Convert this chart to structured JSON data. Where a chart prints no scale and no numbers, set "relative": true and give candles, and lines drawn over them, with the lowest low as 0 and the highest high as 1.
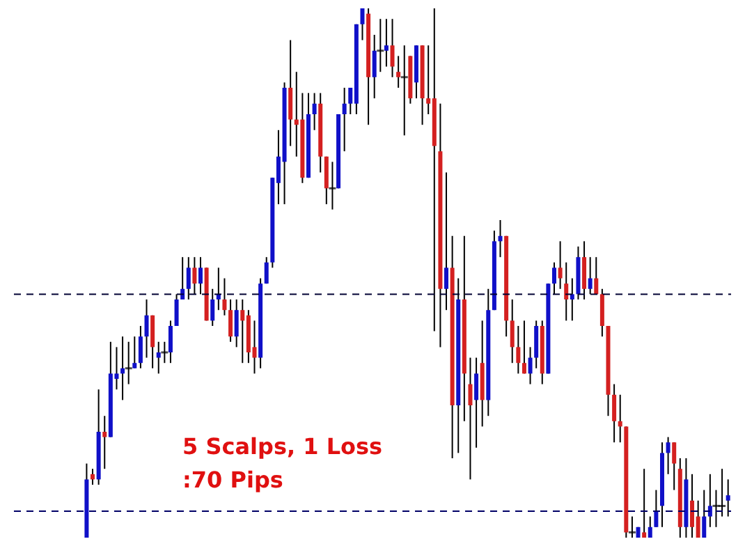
{
  "chart_data": {
    "type": "candlestick",
    "relative": true,
    "categories": [
      null,
      null,
      null,
      null,
      null,
      null,
      null,
      null,
      null,
      null,
      null,
      null,
      null,
      null,
      null,
      null,
      null,
      null,
      null,
      null,
      null,
      null,
      null,
      null,
      null,
      null,
      null,
      null,
      null,
      null,
      null,
      null,
      null,
      null,
      null,
      null,
      null,
      null,
      null,
      null,
      null,
      null,
      null,
      null,
      null,
      null,
      null,
      null,
      null,
      null,
      null,
      null,
      null,
      null,
      null,
      null,
      null,
      null,
      null,
      null,
      null,
      null,
      null,
      null,
      null,
      null,
      null,
      null,
      null,
      null,
      null,
      null,
      null,
      null,
      null,
      null,
      null,
      null,
      null,
      null,
      null,
      null,
      null,
      null,
      null,
      null,
      null,
      null,
      null,
      null,
      null,
      null,
      null,
      null,
      null,
      null,
      null,
      null,
      null,
      null,
      null,
      null,
      null,
      null,
      null,
      null,
      null,
      null
    ],
    "ohlc": [
      [
        0,
        0.14,
        0,
        0.11
      ],
      [
        0.12,
        0.13,
        0.1,
        0.11
      ],
      [
        0.11,
        0.28,
        0.1,
        0.2
      ],
      [
        0.2,
        0.23,
        0.13,
        0.19
      ],
      [
        0.19,
        0.37,
        0.19,
        0.31
      ],
      [
        0.3,
        0.36,
        0.28,
        0.31
      ],
      [
        0.31,
        0.38,
        0.26,
        0.32
      ],
      [
        0.32,
        0.37,
        0.29,
        0.32
      ],
      [
        0.32,
        0.38,
        0.32,
        0.33
      ],
      [
        0.33,
        0.4,
        0.32,
        0.38
      ],
      [
        0.38,
        0.45,
        0.34,
        0.42
      ],
      [
        0.42,
        0.42,
        0.32,
        0.36
      ],
      [
        0.34,
        0.37,
        0.31,
        0.35
      ],
      [
        0.35,
        0.37,
        0.33,
        0.35
      ],
      [
        0.35,
        0.41,
        0.33,
        0.4
      ],
      [
        0.4,
        0.46,
        0.4,
        0.45
      ],
      [
        0.45,
        0.53,
        0.45,
        0.47
      ],
      [
        0.47,
        0.53,
        0.45,
        0.51
      ],
      [
        0.51,
        0.53,
        0.46,
        0.48
      ],
      [
        0.48,
        0.53,
        0.46,
        0.51
      ],
      [
        0.51,
        0.51,
        0.41,
        0.41
      ],
      [
        0.41,
        0.47,
        0.4,
        0.45
      ],
      [
        0.45,
        0.51,
        0.43,
        0.46
      ],
      [
        0.45,
        0.49,
        0.42,
        0.43
      ],
      [
        0.43,
        0.45,
        0.37,
        0.38
      ],
      [
        0.38,
        0.45,
        0.36,
        0.43
      ],
      [
        0.43,
        0.45,
        0.33,
        0.41
      ],
      [
        0.42,
        0.43,
        0.33,
        0.35
      ],
      [
        0.36,
        0.41,
        0.31,
        0.34
      ],
      [
        0.34,
        0.49,
        0.32,
        0.48
      ],
      [
        0.48,
        0.53,
        0.48,
        0.52
      ],
      [
        0.52,
        0.68,
        0.51,
        0.68
      ],
      [
        0.67,
        0.77,
        0.63,
        0.72
      ],
      [
        0.71,
        0.86,
        0.63,
        0.85
      ],
      [
        0.85,
        0.94,
        0.74,
        0.79
      ],
      [
        0.79,
        0.88,
        0.72,
        0.78
      ],
      [
        0.79,
        0.84,
        0.67,
        0.68
      ],
      [
        0.68,
        0.84,
        0.68,
        0.8
      ],
      [
        0.8,
        0.84,
        0.77,
        0.82
      ],
      [
        0.82,
        0.84,
        0.69,
        0.72
      ],
      [
        0.72,
        0.72,
        0.63,
        0.66
      ],
      [
        0.66,
        0.71,
        0.62,
        0.66
      ],
      [
        0.66,
        0.8,
        0.66,
        0.8
      ],
      [
        0.8,
        0.85,
        0.73,
        0.82
      ],
      [
        0.82,
        0.85,
        0.8,
        0.85
      ],
      [
        0.82,
        0.97,
        0.8,
        0.97
      ],
      [
        0.97,
        1,
        0.94,
        1
      ],
      [
        0.99,
        1,
        0.78,
        0.87
      ],
      [
        0.87,
        0.95,
        0.83,
        0.92
      ],
      [
        0.92,
        0.98,
        0.88,
        0.92
      ],
      [
        0.92,
        0.98,
        0.89,
        0.93
      ],
      [
        0.93,
        0.98,
        0.87,
        0.89
      ],
      [
        0.88,
        0.91,
        0.85,
        0.87
      ],
      [
        0.87,
        0.93,
        0.76,
        0.87
      ],
      [
        0.91,
        0.91,
        0.82,
        0.83
      ],
      [
        0.86,
        0.93,
        0.83,
        0.93
      ],
      [
        0.93,
        0.93,
        0.78,
        0.83
      ],
      [
        0.83,
        0.93,
        0.8,
        0.82
      ],
      [
        0.83,
        1,
        0.39,
        0.74
      ],
      [
        0.73,
        0.82,
        0.36,
        0.47
      ],
      [
        0.47,
        0.69,
        0.43,
        0.51
      ],
      [
        0.51,
        0.57,
        0.15,
        0.25
      ],
      [
        0.25,
        0.49,
        0.16,
        0.45
      ],
      [
        0.45,
        0.57,
        0.22,
        0.31
      ],
      [
        0.29,
        0.34,
        0.11,
        0.25
      ],
      [
        0.26,
        0.34,
        0.17,
        0.31
      ],
      [
        0.33,
        0.41,
        0.21,
        0.26
      ],
      [
        0.26,
        0.47,
        0.23,
        0.43
      ],
      [
        0.43,
        0.58,
        0.43,
        0.56
      ],
      [
        0.56,
        0.6,
        0.53,
        0.57
      ],
      [
        0.57,
        0.57,
        0.38,
        0.41
      ],
      [
        0.41,
        0.45,
        0.33,
        0.36
      ],
      [
        0.36,
        0.4,
        0.31,
        0.33
      ],
      [
        0.33,
        0.41,
        0.31,
        0.31
      ],
      [
        0.31,
        0.36,
        0.29,
        0.34
      ],
      [
        0.34,
        0.41,
        0.32,
        0.4
      ],
      [
        0.4,
        0.41,
        0.29,
        0.31
      ],
      [
        0.31,
        0.48,
        0.31,
        0.48
      ],
      [
        0.48,
        0.52,
        0.46,
        0.51
      ],
      [
        0.51,
        0.56,
        0.47,
        0.49
      ],
      [
        0.48,
        0.52,
        0.41,
        0.45
      ],
      [
        0.45,
        0.49,
        0.41,
        0.46
      ],
      [
        0.46,
        0.55,
        0.45,
        0.53
      ],
      [
        0.53,
        0.56,
        0.45,
        0.47
      ],
      [
        0.47,
        0.53,
        0.46,
        0.49
      ],
      [
        0.49,
        0.53,
        0.46,
        0.46
      ],
      [
        0.46,
        0.47,
        0.38,
        0.4
      ],
      [
        0.4,
        0.4,
        0.23,
        0.27
      ],
      [
        0.27,
        0.29,
        0.18,
        0.22
      ],
      [
        0.22,
        0.27,
        0.18,
        0.21
      ],
      [
        0.21,
        0.21,
        0,
        0.01
      ],
      [
        0.01,
        0.04,
        0,
        0.01
      ],
      [
        0,
        0.02,
        0,
        0.02
      ],
      [
        0.01,
        0.13,
        0,
        0
      ],
      [
        0,
        0.04,
        0,
        0.02
      ],
      [
        0.02,
        0.09,
        0.02,
        0.05
      ],
      [
        0.06,
        0.18,
        0.02,
        0.16
      ],
      [
        0.16,
        0.19,
        0.12,
        0.18
      ],
      [
        0.18,
        0.18,
        0.09,
        0.14
      ],
      [
        0.13,
        0.15,
        0,
        0.02
      ],
      [
        0.02,
        0.15,
        0,
        0.11
      ],
      [
        0.07,
        0.12,
        0,
        0.02
      ],
      [
        0.04,
        0.07,
        0,
        0
      ],
      [
        0,
        0.09,
        0,
        0.04
      ],
      [
        0.04,
        0.12,
        0.02,
        0.06
      ],
      [
        0.06,
        0.09,
        0.02,
        0.06
      ],
      [
        0.06,
        0.13,
        0.04,
        0.06
      ],
      [
        0.07,
        0.11,
        0.04,
        0.08
      ]
    ],
    "colors": [
      "#1010c8",
      "#d42020",
      "#1010c8",
      "#d42020",
      "#1010c8",
      "#1010c8",
      "#1010c8",
      "#000000",
      "#1010c8",
      "#1010c8",
      "#1010c8",
      "#d42020",
      "#1010c8",
      "#000000",
      "#1010c8",
      "#1010c8",
      "#1010c8",
      "#1010c8",
      "#d42020",
      "#1010c8",
      "#d42020",
      "#1010c8",
      "#1010c8",
      "#d42020",
      "#d42020",
      "#1010c8",
      "#d42020",
      "#d42020",
      "#d42020",
      "#1010c8",
      "#1010c8",
      "#1010c8",
      "#1010c8",
      "#1010c8",
      "#d42020",
      "#d42020",
      "#d42020",
      "#1010c8",
      "#1010c8",
      "#d42020",
      "#d42020",
      "#000000",
      "#1010c8",
      "#1010c8",
      "#1010c8",
      "#1010c8",
      "#1010c8",
      "#d42020",
      "#1010c8",
      "#000000",
      "#1010c8",
      "#d42020",
      "#d42020",
      "#000000",
      "#d42020",
      "#1010c8",
      "#d42020",
      "#d42020",
      "#d42020",
      "#d42020",
      "#1010c8",
      "#d42020",
      "#1010c8",
      "#d42020",
      "#d42020",
      "#1010c8",
      "#d42020",
      "#1010c8",
      "#1010c8",
      "#1010c8",
      "#d42020",
      "#d42020",
      "#d42020",
      "#d42020",
      "#1010c8",
      "#1010c8",
      "#d42020",
      "#1010c8",
      "#1010c8",
      "#d42020",
      "#d42020",
      "#1010c8",
      "#1010c8",
      "#d42020",
      "#1010c8",
      "#d42020",
      "#d42020",
      "#d42020",
      "#d42020",
      "#d42020",
      "#d42020",
      "#000000",
      "#1010c8",
      "#d42020",
      "#1010c8",
      "#1010c8",
      "#1010c8",
      "#1010c8",
      "#d42020",
      "#d42020",
      "#1010c8",
      "#d42020",
      "#d42020",
      "#1010c8",
      "#1010c8",
      "#000000",
      "#000000",
      "#1010c8"
    ],
    "ref_lines": [
      {
        "axis": "y",
        "value": 0.46,
        "color": "#000033",
        "line_style": "dashed"
      },
      {
        "axis": "y",
        "value": 0.05,
        "color": "#000066",
        "line_style": "dashed"
      }
    ],
    "annotations": [
      "5 Scalps, 1 Loss",
      ":70 Pips"
    ]
  }
}
